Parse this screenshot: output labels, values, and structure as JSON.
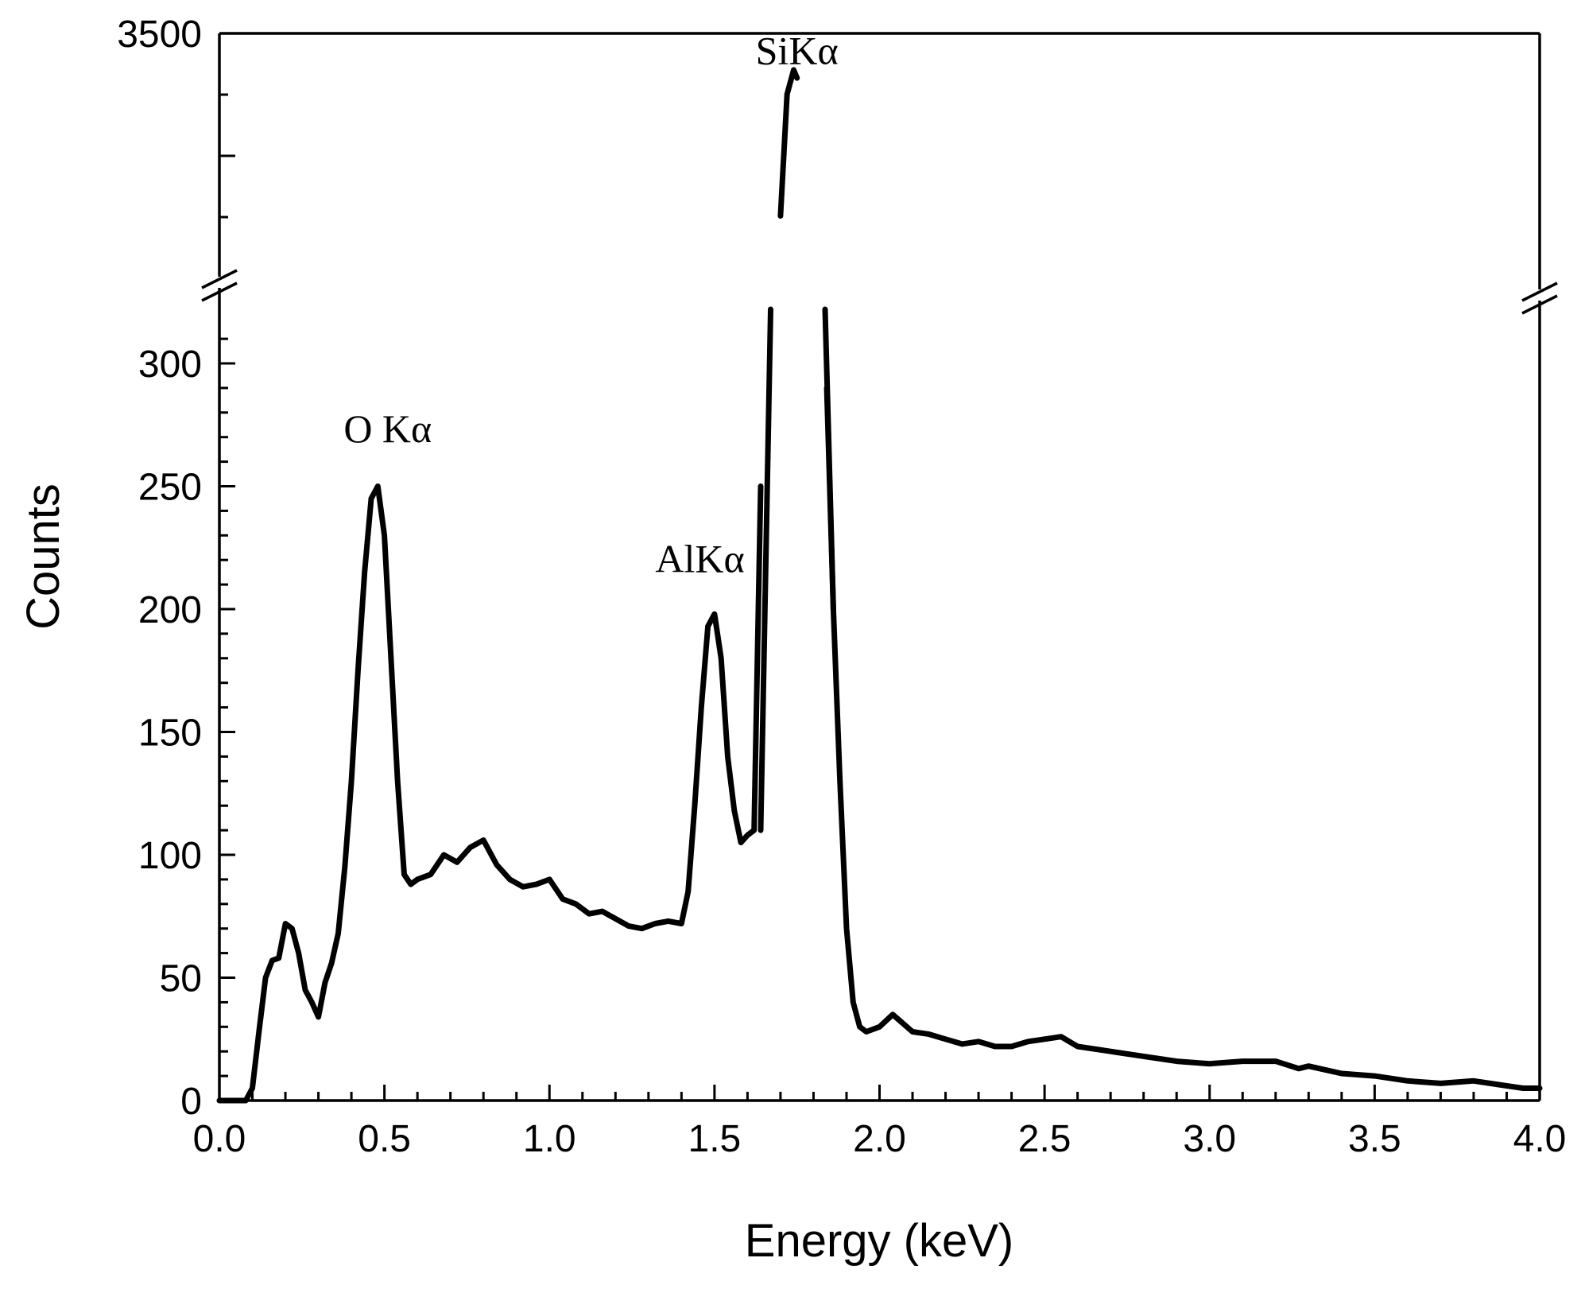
{
  "chart_data": {
    "type": "line",
    "xlabel": "Energy (keV)",
    "ylabel": "Counts",
    "xlim": [
      0.0,
      4.0
    ],
    "ylim_lower": [
      0,
      320
    ],
    "ylim_upper_top": 3500,
    "broken_y_axis": true,
    "grid": false,
    "legend": "none",
    "x_ticks": [
      "0.0",
      "0.5",
      "1.0",
      "1.5",
      "2.0",
      "2.5",
      "3.0",
      "3.5",
      "4.0"
    ],
    "y_ticks_lower": [
      "0",
      "50",
      "100",
      "150",
      "200",
      "250",
      "300"
    ],
    "y_ticks_upper": [
      "3500"
    ],
    "annotations": [
      {
        "text": "O Kα",
        "x": 0.51,
        "y": 268
      },
      {
        "text": "AlKα",
        "x": 1.48,
        "y": 215
      },
      {
        "text": "SiKα",
        "x": 1.75,
        "y": 3350
      }
    ],
    "series": [
      {
        "x": [
          0.0,
          0.08,
          0.1,
          0.12,
          0.14,
          0.16,
          0.18,
          0.2,
          0.22,
          0.24,
          0.26,
          0.28,
          0.3,
          0.32,
          0.34,
          0.36,
          0.38,
          0.4,
          0.42,
          0.44,
          0.46,
          0.48,
          0.5,
          0.52,
          0.54,
          0.56,
          0.58,
          0.6,
          0.64,
          0.68,
          0.72,
          0.76,
          0.8,
          0.84,
          0.88,
          0.92,
          0.96,
          1.0,
          1.04,
          1.08,
          1.12,
          1.16,
          1.2,
          1.24,
          1.28,
          1.32,
          1.36,
          1.4,
          1.42,
          1.44,
          1.46,
          1.48,
          1.5,
          1.52,
          1.54,
          1.56,
          1.58,
          1.6,
          1.62,
          1.64,
          1.66,
          1.68,
          1.7,
          1.72,
          1.74,
          1.75,
          1.76,
          1.78,
          1.8,
          1.82,
          1.84,
          1.86,
          1.88,
          1.9,
          1.92,
          1.94,
          1.96,
          2.0,
          2.04,
          2.1,
          2.15,
          2.2,
          2.25,
          2.3,
          2.35,
          2.4,
          2.45,
          2.5,
          2.55,
          2.6,
          2.7,
          2.8,
          2.9,
          3.0,
          3.1,
          3.2,
          3.27,
          3.3,
          3.4,
          3.5,
          3.6,
          3.7,
          3.8,
          3.9,
          3.95,
          4.0
        ],
        "y": [
          0,
          0,
          5,
          28,
          50,
          57,
          58,
          72,
          70,
          60,
          45,
          40,
          34,
          48,
          56,
          68,
          95,
          130,
          175,
          215,
          245,
          250,
          230,
          180,
          130,
          92,
          88,
          90,
          92,
          100,
          97,
          103,
          106,
          96,
          90,
          87,
          88,
          90,
          82,
          80,
          76,
          77,
          74,
          71,
          70,
          72,
          73,
          72,
          85,
          120,
          160,
          193,
          198,
          180,
          140,
          118,
          105,
          108,
          110,
          250,
          800,
          1500,
          2600,
          3200,
          3320,
          3280,
          2200,
          900,
          600,
          400,
          290,
          200,
          130,
          70,
          40,
          30,
          28,
          30,
          35,
          28,
          27,
          25,
          23,
          24,
          22,
          22,
          24,
          25,
          26,
          22,
          20,
          18,
          16,
          15,
          16,
          16,
          13,
          14,
          11,
          10,
          8,
          7,
          8,
          6,
          5,
          5
        ]
      }
    ]
  }
}
